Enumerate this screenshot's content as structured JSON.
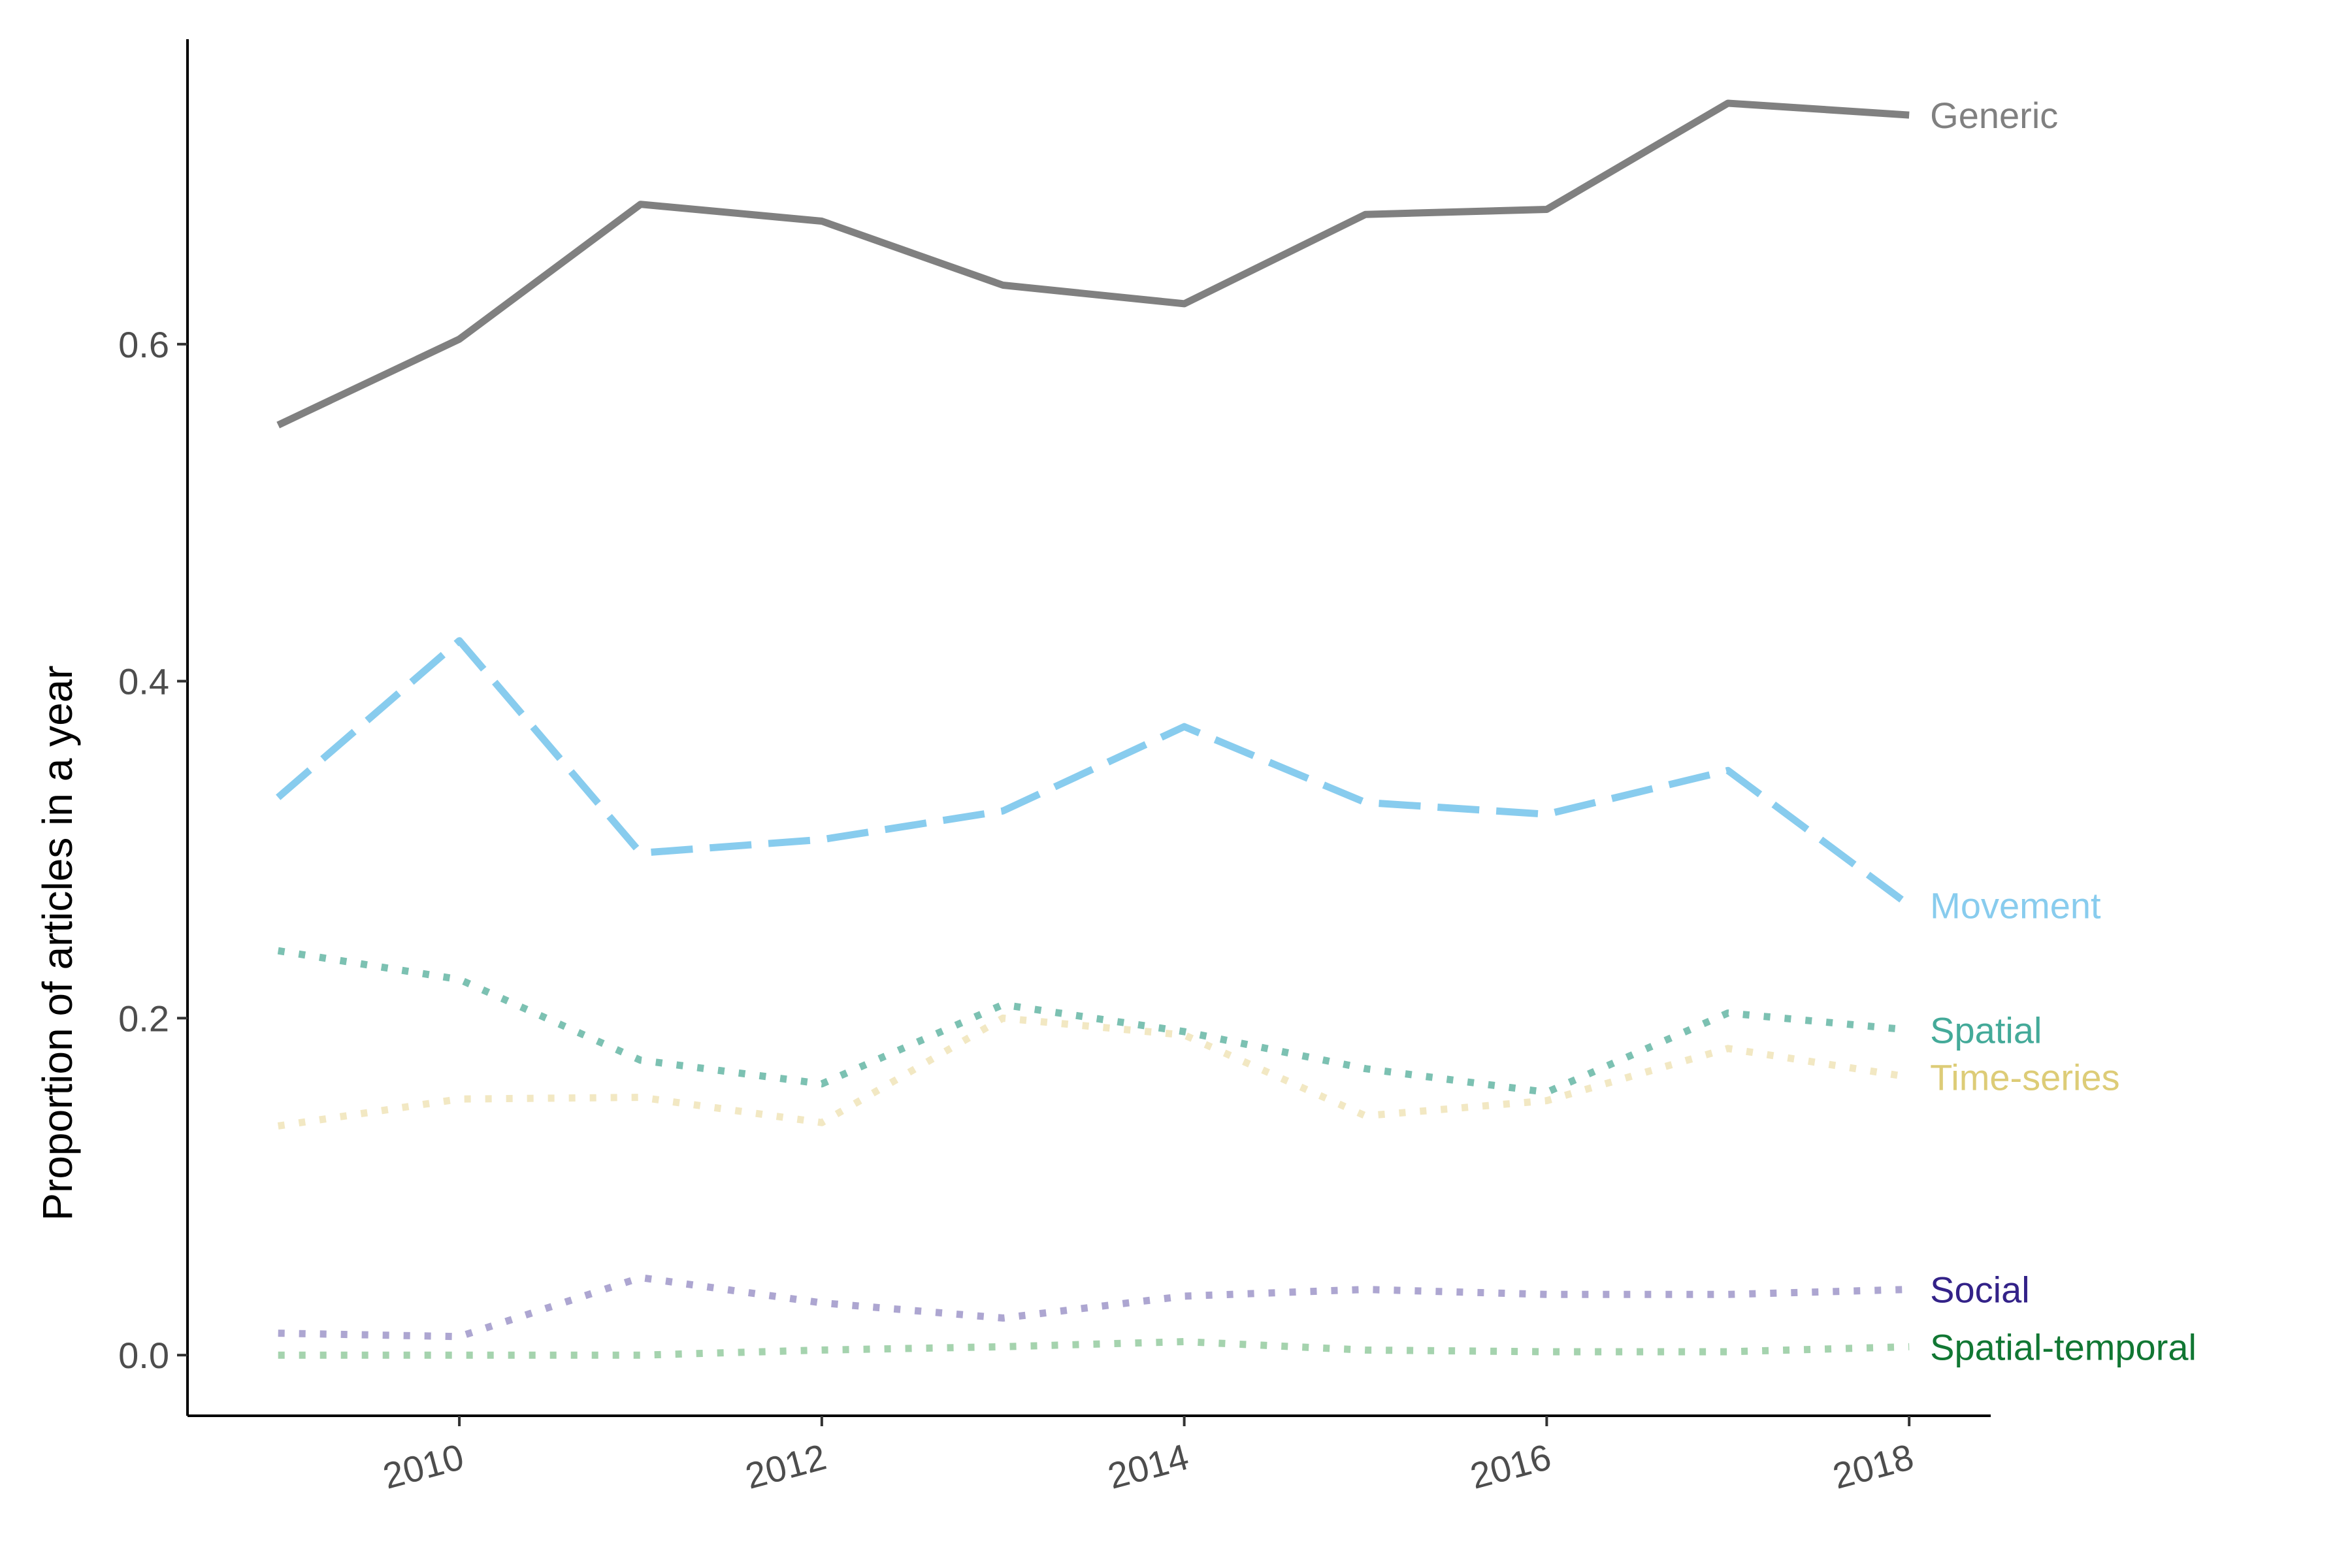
{
  "chart_data": {
    "type": "line",
    "title": "",
    "xlabel": "",
    "ylabel": "Proportion of articles in a year",
    "x": [
      2009,
      2010,
      2011,
      2012,
      2013,
      2014,
      2015,
      2016,
      2017,
      2018
    ],
    "xlim": [
      2008.5,
      2018.45
    ],
    "ylim": [
      -0.036,
      0.781
    ],
    "x_ticks": [
      "2010",
      "2012",
      "2014",
      "2016",
      "2018"
    ],
    "y_ticks": [
      "0.0",
      "0.2",
      "0.4",
      "0.6"
    ],
    "grid": false,
    "legend": "direct labels at right end of lines",
    "series": [
      {
        "name": "Generic",
        "values": [
          0.552,
          0.603,
          0.683,
          0.673,
          0.635,
          0.624,
          0.677,
          0.68,
          0.743,
          0.736
        ],
        "color": "#808080",
        "label_color": "#808080",
        "style": "solid"
      },
      {
        "name": "Movement",
        "values": [
          0.331,
          0.424,
          0.298,
          0.306,
          0.323,
          0.373,
          0.328,
          0.321,
          0.347,
          0.267
        ],
        "color": "#88CCEE",
        "label_color": "#88CCEE",
        "style": "dashed"
      },
      {
        "name": "Spatial",
        "values": [
          0.24,
          0.223,
          0.175,
          0.161,
          0.208,
          0.192,
          0.17,
          0.156,
          0.203,
          0.193
        ],
        "color": "#7CC1B2",
        "label_color": "#44AA99",
        "style": "dotted"
      },
      {
        "name": "Time-series",
        "values": [
          0.136,
          0.152,
          0.153,
          0.138,
          0.2,
          0.19,
          0.142,
          0.151,
          0.182,
          0.165
        ],
        "color": "#F2E8C3",
        "label_color": "#DDCC77",
        "style": "dotted"
      },
      {
        "name": "Social",
        "values": [
          0.013,
          0.011,
          0.046,
          0.031,
          0.022,
          0.035,
          0.039,
          0.036,
          0.036,
          0.039
        ],
        "color": "#ADA6D1",
        "label_color": "#332288",
        "style": "dotted"
      },
      {
        "name": "Spatial-temporal",
        "values": [
          0.0,
          0.0,
          0.0,
          0.003,
          0.005,
          0.008,
          0.003,
          0.002,
          0.002,
          0.005
        ],
        "color": "#A5D3AE",
        "label_color": "#117733",
        "style": "dotted"
      }
    ]
  }
}
